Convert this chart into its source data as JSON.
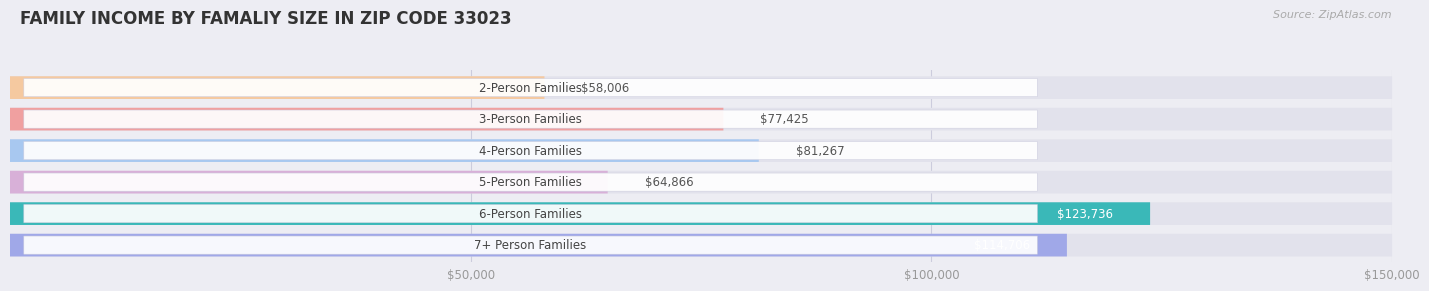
{
  "title": "FAMILY INCOME BY FAMALIY SIZE IN ZIP CODE 33023",
  "source": "Source: ZipAtlas.com",
  "categories": [
    "2-Person Families",
    "3-Person Families",
    "4-Person Families",
    "5-Person Families",
    "6-Person Families",
    "7+ Person Families"
  ],
  "values": [
    58006,
    77425,
    81267,
    64866,
    123736,
    114706
  ],
  "labels": [
    "$58,006",
    "$77,425",
    "$81,267",
    "$64,866",
    "$123,736",
    "$114,706"
  ],
  "bar_colors": [
    "#f5c9a0",
    "#f0a0a0",
    "#a8c8f0",
    "#d8b0d8",
    "#3ab8b8",
    "#a0a8e8"
  ],
  "background_color": "#ededf3",
  "bar_bg_color": "#e2e2ec",
  "xlim": [
    0,
    150000
  ],
  "xticks": [
    0,
    50000,
    100000,
    150000
  ],
  "xtick_labels": [
    "",
    "$50,000",
    "$100,000",
    "$150,000"
  ],
  "title_fontsize": 12,
  "label_fontsize": 8.5,
  "category_fontsize": 8.5
}
